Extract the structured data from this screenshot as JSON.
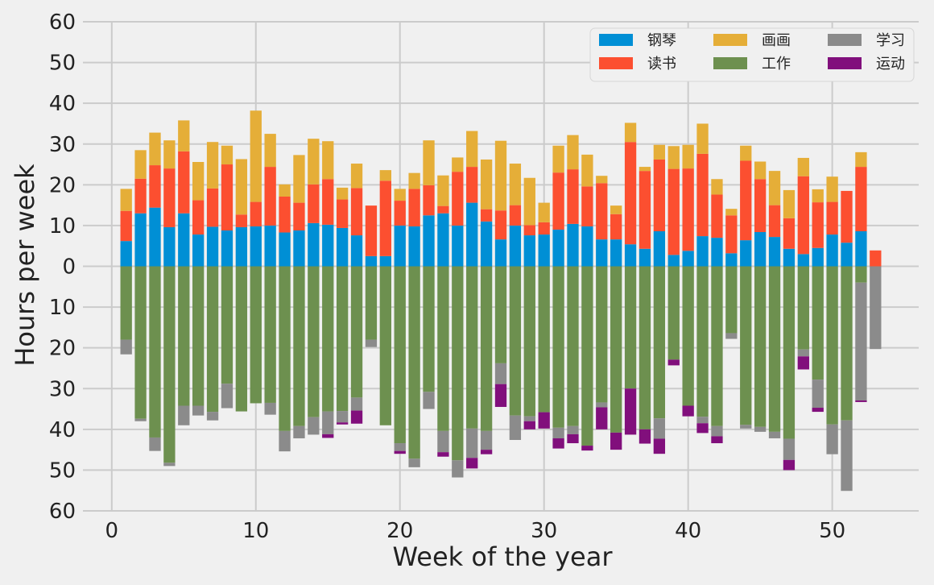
{
  "chart_data": {
    "type": "bar",
    "title": "",
    "xlabel": "Week of the year",
    "ylabel": "Hours per week",
    "xlim": [
      -2,
      56
    ],
    "ylim": [
      -60,
      60
    ],
    "xticks": [
      0,
      10,
      20,
      30,
      40,
      50
    ],
    "yticks": [
      60,
      50,
      40,
      30,
      20,
      10,
      0,
      -10,
      -20,
      -30,
      -40,
      -50,
      -60
    ],
    "ytick_labels": [
      "60",
      "50",
      "40",
      "30",
      "20",
      "10",
      "0",
      "10",
      "20",
      "30",
      "40",
      "50",
      "60"
    ],
    "grid": true,
    "legend_position": "top-right",
    "weeks": [
      1,
      2,
      3,
      4,
      5,
      6,
      7,
      8,
      9,
      10,
      11,
      12,
      13,
      14,
      15,
      16,
      17,
      18,
      19,
      20,
      21,
      22,
      23,
      24,
      25,
      26,
      27,
      28,
      29,
      30,
      31,
      32,
      33,
      34,
      35,
      36,
      37,
      38,
      39,
      40,
      41,
      42,
      43,
      44,
      45,
      46,
      47,
      48,
      49,
      50,
      51,
      52,
      53
    ],
    "positive_series": [
      {
        "name": "钢琴",
        "color": "#008fd5",
        "values": [
          6.2,
          13,
          14.4,
          9.6,
          13,
          7.8,
          9.7,
          8.8,
          9.6,
          9.8,
          10,
          8.3,
          8.8,
          10.6,
          10.2,
          9.4,
          7.6,
          2.5,
          2.5,
          10,
          9.8,
          12.5,
          13,
          10,
          15.6,
          11,
          6.6,
          10,
          7.6,
          7.8,
          9,
          10.4,
          9.8,
          6.6,
          6.6,
          5.4,
          4.3,
          8.6,
          2.8,
          3.8,
          7.4,
          7,
          3.2,
          6.4,
          8.4,
          7.2,
          4.3,
          3,
          4.5,
          7.8,
          5.8,
          8.6,
          0
        ]
      },
      {
        "name": "读书",
        "color": "#fc4f30",
        "values": [
          7.4,
          8.5,
          10.4,
          14.4,
          15.2,
          8.4,
          9.4,
          16.2,
          3.1,
          6,
          14.4,
          8.8,
          6.8,
          9.5,
          11.2,
          7,
          11.6,
          12.4,
          18.5,
          6.1,
          9.2,
          7.4,
          1.8,
          13.2,
          8.8,
          3,
          7.1,
          5,
          2.5,
          3,
          14,
          13.4,
          9.8,
          13.8,
          6.2,
          25.1,
          19.1,
          17.6,
          21.1,
          20.2,
          20.2,
          10.6,
          9.3,
          19.5,
          13,
          7.8,
          7.5,
          19.1,
          11.2,
          8,
          12.7,
          15.8,
          3.9
        ]
      },
      {
        "name": "画画",
        "color": "#e5ae38",
        "values": [
          5.4,
          7,
          8,
          6.9,
          7.6,
          9.4,
          11.4,
          4.6,
          13.6,
          22.4,
          8.1,
          3,
          11.7,
          11.2,
          9.3,
          2.9,
          6,
          0,
          2.6,
          2.9,
          3.9,
          11,
          7.5,
          3.5,
          8.8,
          12.2,
          17.1,
          10.2,
          11.6,
          4.8,
          6.6,
          8.4,
          7.8,
          1.8,
          2.1,
          4.7,
          1,
          3.6,
          5.6,
          5.8,
          7.4,
          3.8,
          1.6,
          3.7,
          4.3,
          8.4,
          6.9,
          4.5,
          3.2,
          6.2,
          0,
          3.6,
          0
        ]
      },
      {
        "name": "学习",
        "color": "#8b8b8b",
        "values": [
          0,
          0,
          0,
          0,
          0,
          0,
          0,
          0,
          0,
          0,
          0,
          0,
          0,
          0,
          0,
          0,
          0,
          0,
          0,
          0,
          0,
          0,
          0,
          0,
          0,
          0,
          0,
          0,
          0,
          0,
          0,
          0,
          0,
          0,
          0,
          0,
          0,
          0,
          0,
          0,
          0,
          0,
          0,
          0,
          0,
          0,
          0,
          0,
          0,
          0,
          0,
          0,
          0
        ]
      },
      {
        "name": "运动",
        "color": "#810f7c",
        "values": [
          0,
          0,
          0,
          0,
          0,
          0,
          0,
          0,
          0,
          0,
          0,
          0,
          0,
          0,
          0,
          0,
          0,
          0,
          0,
          0,
          0,
          0,
          0,
          0,
          0,
          0,
          0,
          0,
          0,
          0,
          0,
          0,
          0,
          0,
          0,
          0,
          0,
          0,
          0,
          0,
          0,
          0,
          0,
          0,
          0,
          0,
          0,
          0,
          0,
          0,
          0,
          0,
          0
        ]
      }
    ],
    "negative_series": [
      {
        "name": "工作",
        "color": "#6d904f",
        "values": [
          18,
          37.4,
          42,
          48.2,
          34.2,
          34.2,
          35.7,
          28.8,
          35.6,
          33.6,
          33.5,
          40.4,
          39.2,
          37,
          35.6,
          35.5,
          32.2,
          18,
          39,
          43.4,
          47.2,
          30.8,
          40.4,
          47.6,
          39.8,
          40.4,
          23.8,
          36.6,
          36.8,
          35.8,
          39.6,
          39.2,
          44,
          33.4,
          40.8,
          30,
          40,
          37.3,
          22.9,
          34.2,
          36.9,
          39.2,
          16.4,
          38.9,
          39.4,
          40.6,
          42.3,
          20.4,
          27.8,
          38.8,
          37.8,
          4,
          0
        ]
      },
      {
        "name": "学习",
        "color": "#8b8b8b",
        "values": [
          3.6,
          0.6,
          3.3,
          0.8,
          4.8,
          2.4,
          2.1,
          6,
          0,
          0,
          2.9,
          5,
          3,
          4.3,
          5.6,
          2.8,
          3.2,
          1.8,
          0,
          1.9,
          2.1,
          4.2,
          5.2,
          4.2,
          7.2,
          4.6,
          5.1,
          6,
          1.2,
          0,
          2.6,
          2,
          0,
          1.2,
          0,
          0,
          0,
          5,
          0,
          0,
          1.6,
          2.5,
          1.4,
          0.9,
          1.2,
          1.6,
          5.2,
          1.7,
          6.9,
          7.3,
          17.3,
          28.9,
          20.3
        ]
      },
      {
        "name": "运动",
        "color": "#810f7c",
        "values": [
          0,
          0,
          0,
          0,
          0,
          0,
          0,
          0,
          0,
          0,
          0,
          0,
          0,
          0,
          0.9,
          0.5,
          3.2,
          0,
          0,
          0.7,
          0,
          0,
          1.1,
          0,
          2.6,
          1.1,
          5.6,
          0,
          2,
          4,
          2.5,
          2.2,
          1.2,
          5.4,
          4.2,
          11.3,
          3.5,
          3.7,
          1.4,
          2.6,
          2.4,
          1.7,
          0,
          0,
          0,
          0,
          2.5,
          3.2,
          1,
          0,
          0,
          0.4,
          0
        ]
      }
    ],
    "legend": [
      {
        "label": "钢琴",
        "color": "#008fd5"
      },
      {
        "label": "读书",
        "color": "#fc4f30"
      },
      {
        "label": "画画",
        "color": "#e5ae38"
      },
      {
        "label": "工作",
        "color": "#6d904f"
      },
      {
        "label": "学习",
        "color": "#8b8b8b"
      },
      {
        "label": "运动",
        "color": "#810f7c"
      }
    ],
    "colors": {
      "background": "#f0f0f0",
      "grid": "#cbcbcb",
      "text": "#222222"
    }
  }
}
